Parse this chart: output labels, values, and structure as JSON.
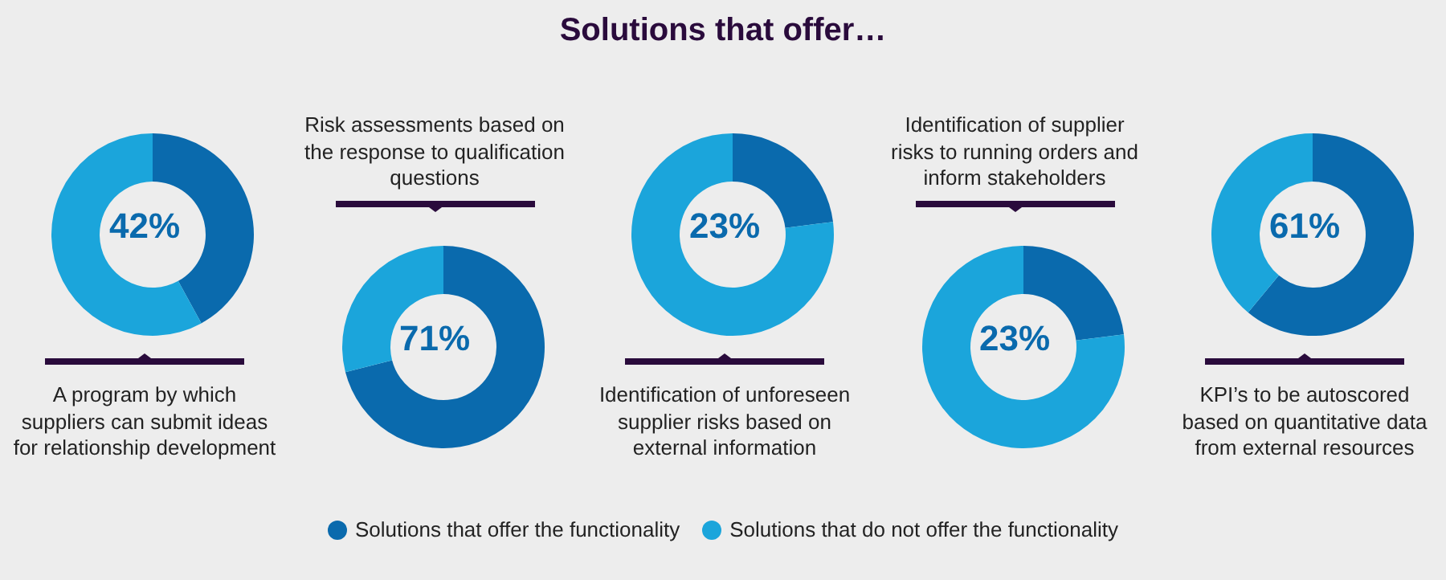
{
  "chart_data": [
    {
      "type": "other",
      "title": "Solutions that offer…"
    },
    {
      "type": "donut",
      "title": "A program by which suppliers can submit ideas for relationship development",
      "categories": [
        "Solutions that offer the functionality",
        "Solutions that do not offer the functionality"
      ],
      "values": [
        42,
        58
      ],
      "colors": [
        "#0a6aad",
        "#1ba5db"
      ],
      "annotations": [
        "42%"
      ],
      "legend": "bottom"
    },
    {
      "type": "donut",
      "title": "Risk assessments based on the response to qualification questions",
      "categories": [
        null,
        null
      ],
      "values": [
        71,
        29
      ],
      "colors": [
        "#0a6aad",
        "#1ba5db"
      ],
      "annotations": [
        "71%"
      ]
    },
    {
      "type": "donut",
      "title": "Identification of unforeseen supplier risks based on external information",
      "categories": [
        null,
        null
      ],
      "values": [
        23,
        77
      ],
      "colors": [
        "#0a6aad",
        "#1ba5db"
      ],
      "annotations": [
        "23%"
      ]
    },
    {
      "type": "donut",
      "title": "Identification of supplier risks to running orders and inform stakeholders",
      "categories": [
        null,
        null
      ],
      "values": [
        23,
        77
      ],
      "colors": [
        "#0a6aad",
        "#1ba5db"
      ],
      "annotations": [
        "23%"
      ]
    },
    {
      "type": "donut",
      "title": "KPI’s to be autoscored based on quantitative data from external resources",
      "categories": [
        null,
        null
      ],
      "values": [
        61,
        39
      ],
      "colors": [
        "#0a6aad",
        "#1ba5db"
      ],
      "annotations": [
        "61%"
      ]
    }
  ]
}
